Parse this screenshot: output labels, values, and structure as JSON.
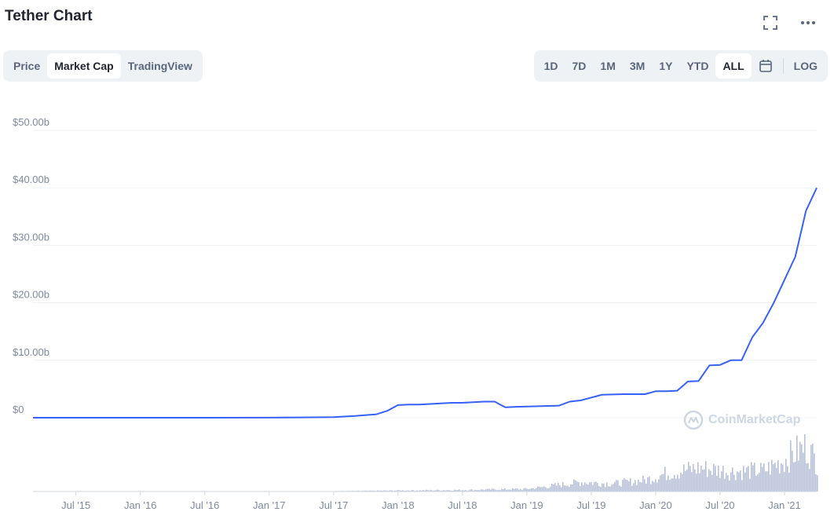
{
  "header": {
    "title": "Tether Chart"
  },
  "icons": {
    "fullscreen": "fullscreen-icon",
    "more": "more-horizontal-icon",
    "calendar": "calendar-icon",
    "logo": "coinmarketcap-logo"
  },
  "left_tabs": [
    {
      "label": "Price",
      "active": false
    },
    {
      "label": "Market Cap",
      "active": true
    },
    {
      "label": "TradingView",
      "active": false
    }
  ],
  "range_tabs": [
    {
      "label": "1D",
      "active": false
    },
    {
      "label": "7D",
      "active": false
    },
    {
      "label": "1M",
      "active": false
    },
    {
      "label": "3M",
      "active": false
    },
    {
      "label": "1Y",
      "active": false
    },
    {
      "label": "YTD",
      "active": false
    },
    {
      "label": "ALL",
      "active": true
    }
  ],
  "log_label": "LOG",
  "watermark": "CoinMarketCap",
  "colors": {
    "line": "#3861fb",
    "volume": "#b8c0d8",
    "grid": "#eff2f5",
    "axis_text": "#808a9d"
  },
  "chart_data": {
    "type": "line",
    "title": "",
    "xlabel": "",
    "ylabel": "",
    "ylim": [
      0,
      50
    ],
    "y_unit": "billion USD",
    "y_ticks": [
      "$0",
      "$10.00b",
      "$20.00b",
      "$30.00b",
      "$40.00b",
      "$50.00b"
    ],
    "x_ticks": [
      "Jul '15",
      "Jan '16",
      "Jul '16",
      "Jan '17",
      "Jul '17",
      "Jan '18",
      "Jul '18",
      "Jan '19",
      "Jul '19",
      "Jan '20",
      "Jul '20",
      "Jan '21"
    ],
    "grid": true,
    "legend": "none",
    "series": [
      {
        "values_note": "market cap in $b, dates as YYYY-MM",
        "x": [
          "2015-03",
          "2015-07",
          "2016-01",
          "2016-07",
          "2017-01",
          "2017-04",
          "2017-07",
          "2017-09",
          "2017-11",
          "2017-12",
          "2018-01",
          "2018-02",
          "2018-03",
          "2018-05",
          "2018-06",
          "2018-07",
          "2018-09",
          "2018-10",
          "2018-11",
          "2018-12",
          "2019-02",
          "2019-04",
          "2019-05",
          "2019-06",
          "2019-08",
          "2019-10",
          "2019-12",
          "2020-01",
          "2020-02",
          "2020-03",
          "2020-04",
          "2020-05",
          "2020-06",
          "2020-07",
          "2020-08",
          "2020-09",
          "2020-10",
          "2020-11",
          "2020-12",
          "2021-01",
          "2021-02",
          "2021-03",
          "2021-04"
        ],
        "y": [
          0,
          0,
          0,
          0.005,
          0.01,
          0.06,
          0.1,
          0.3,
          0.6,
          1.2,
          2.2,
          2.3,
          2.3,
          2.5,
          2.6,
          2.6,
          2.8,
          2.8,
          1.8,
          1.9,
          2.0,
          2.1,
          2.8,
          3.0,
          4.0,
          4.1,
          4.1,
          4.6,
          4.6,
          4.7,
          6.3,
          6.4,
          9.1,
          9.2,
          10.0,
          10.0,
          14.0,
          16.5,
          20.0,
          24.0,
          28.0,
          36.0,
          40.0
        ]
      }
    ],
    "volume": {
      "note": "relative trading volume bars (0-1), dates as YYYY-MM",
      "x": [
        "2015-03",
        "2017-06",
        "2018-01",
        "2018-07",
        "2019-01",
        "2019-03",
        "2019-06",
        "2019-09",
        "2019-12",
        "2020-02",
        "2020-05",
        "2020-08",
        "2020-11",
        "2021-01",
        "2021-02",
        "2021-03",
        "2021-04"
      ],
      "v": [
        0,
        0.005,
        0.02,
        0.03,
        0.05,
        0.1,
        0.18,
        0.15,
        0.22,
        0.35,
        0.45,
        0.38,
        0.4,
        0.6,
        0.75,
        0.85,
        0.55
      ]
    }
  }
}
